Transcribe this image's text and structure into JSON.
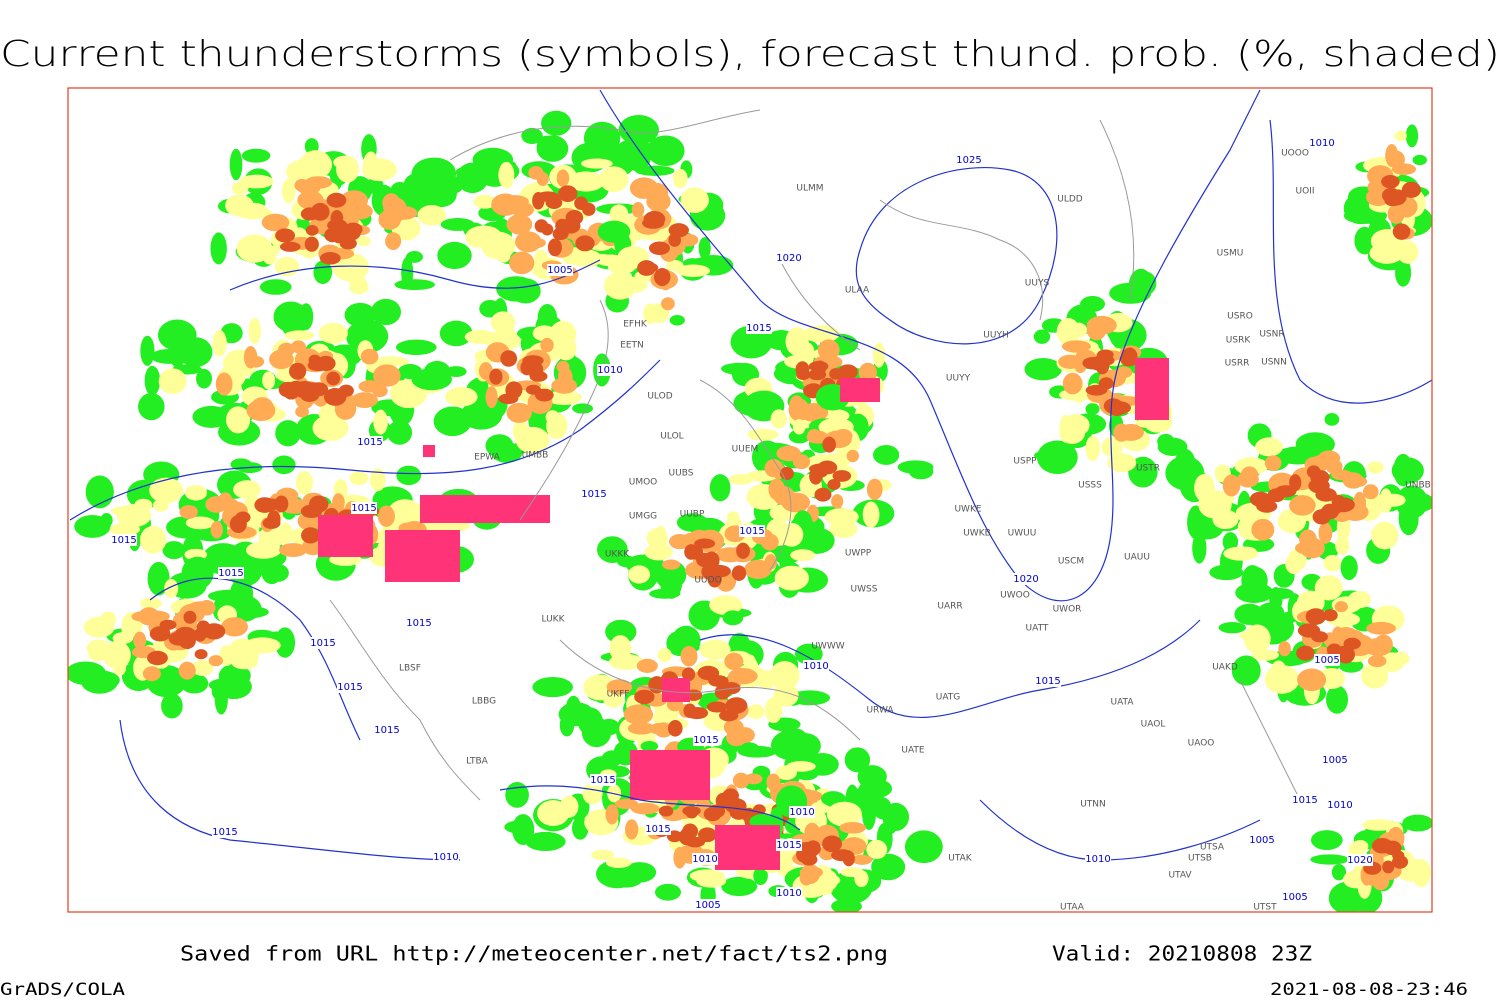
{
  "header": {
    "title": "Current thunderstorms (symbols), forecast thund. prob. (%, shaded)"
  },
  "footer": {
    "source": "Saved from URL http://meteocenter.net/fact/ts2.png",
    "valid": "Valid: 20210808 23Z",
    "credit": "GrADS/COLA",
    "timestamp": "2021-08-08-23:46"
  },
  "map": {
    "stations": [
      "ULMM",
      "ULDD",
      "UOII",
      "UOOO",
      "USMU",
      "UUYS",
      "ULAA",
      "USRO",
      "USRK",
      "USNR",
      "UUYH",
      "USRR",
      "USNN",
      "EFHK",
      "EETN",
      "ULOD",
      "ULOL",
      "UUYY",
      "UUEM",
      "EPWA",
      "UMOO",
      "UUBS",
      "UMBB",
      "USPP",
      "USSS",
      "USTR",
      "UMGG",
      "UUBP",
      "UWKE",
      "UWKB",
      "UWUU",
      "UWPP",
      "UKKK",
      "USCM",
      "UAUU",
      "UUOO",
      "UWSS",
      "UARR",
      "UWOO",
      "UWOR",
      "UATT",
      "LUKK",
      "UAKD",
      "UWWW",
      "LBSF",
      "UATG",
      "LBBG",
      "UKFF",
      "URWA",
      "UATA",
      "UAOL",
      "UAOO",
      "UATE",
      "LTBA",
      "UTNN",
      "UTAK",
      "UTSA",
      "UTSB",
      "UTAV",
      "UTAA",
      "UTST",
      "UNBB"
    ],
    "isobar_labels": [
      1025,
      1020,
      1015,
      1010,
      1005,
      1015,
      1015,
      1015,
      1015,
      1015,
      1015,
      1015,
      1015,
      1015,
      1015,
      1020,
      1010,
      1015,
      1015,
      1015,
      1015,
      1010,
      1010,
      1015,
      1010,
      1005,
      1010,
      1015,
      1010,
      1010,
      1005,
      1005,
      1015,
      1010,
      1020,
      1005,
      1005
    ]
  }
}
